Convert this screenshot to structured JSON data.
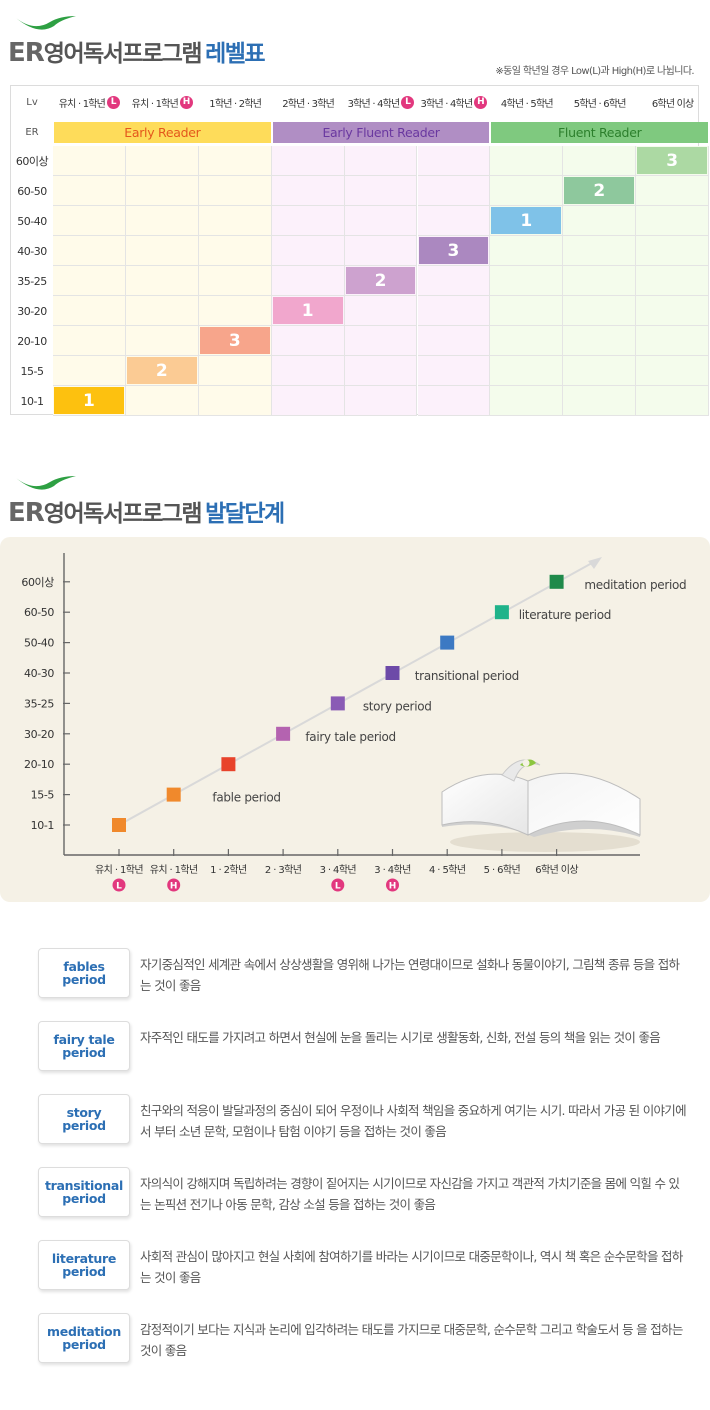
{
  "section1": {
    "title_er": "ER",
    "title_main": "영어독서프로그램",
    "title_accent": "레벨표",
    "note": "※동일 학년일 경우 Low(L)과 High(H)로 나뉩니다."
  },
  "table": {
    "lv_label": "Lv",
    "er_label": "ER",
    "columns": [
      {
        "label": "유치 · 1학년",
        "badge": "L"
      },
      {
        "label": "유치 · 1학년",
        "badge": "H"
      },
      {
        "label": "1학년 · 2학년",
        "badge": ""
      },
      {
        "label": "2학년 · 3학년",
        "badge": ""
      },
      {
        "label": "3학년 · 4학년",
        "badge": "L"
      },
      {
        "label": "3학년 · 4학년",
        "badge": "H"
      },
      {
        "label": "4학년 · 5학년",
        "badge": ""
      },
      {
        "label": "5학년 · 6학년",
        "badge": ""
      },
      {
        "label": "6학년 이상",
        "badge": ""
      }
    ],
    "groups": [
      {
        "name": "Early Reader",
        "start": 0,
        "span": 3,
        "bar_color": "#fedc5a",
        "text_color": "#e4581c",
        "cell_color": "#fffbea"
      },
      {
        "name": "Early Fluent Reader",
        "start": 3,
        "span": 3,
        "bar_color": "#b08ec4",
        "text_color": "#6a38a0",
        "cell_color": "#fcf1fb"
      },
      {
        "name": "Fluent Reader",
        "start": 6,
        "span": 3,
        "bar_color": "#7fc97f",
        "text_color": "#2c7f2c",
        "cell_color": "#f4fcec"
      }
    ],
    "rows": [
      "60이상",
      "60-50",
      "50-40",
      "40-30",
      "35-25",
      "30-20",
      "20-10",
      "15-5",
      "10-1"
    ],
    "blocks": [
      {
        "col": 0,
        "row": 8,
        "label": "1",
        "color": "#fdc10f"
      },
      {
        "col": 1,
        "row": 7,
        "label": "2",
        "color": "#fbcb94"
      },
      {
        "col": 2,
        "row": 6,
        "label": "3",
        "color": "#f7a58b"
      },
      {
        "col": 3,
        "row": 5,
        "label": "1",
        "color": "#f1a7cd"
      },
      {
        "col": 4,
        "row": 4,
        "label": "2",
        "color": "#cda2cf"
      },
      {
        "col": 5,
        "row": 3,
        "label": "3",
        "color": "#ab88c0"
      },
      {
        "col": 6,
        "row": 2,
        "label": "1",
        "color": "#7fc2e8"
      },
      {
        "col": 7,
        "row": 1,
        "label": "2",
        "color": "#8ec89d"
      },
      {
        "col": 8,
        "row": 0,
        "label": "3",
        "color": "#acd9a3"
      }
    ]
  },
  "section2": {
    "title_er": "ER",
    "title_main": "영어독서프로그램",
    "title_accent": "발달단계"
  },
  "chart_data": {
    "type": "scatter",
    "title": "",
    "xlabel": "",
    "ylabel": "",
    "x_categories": [
      {
        "label": "유치 · 1학년",
        "badge": "L"
      },
      {
        "label": "유치 · 1학년",
        "badge": "H"
      },
      {
        "label": "1 · 2학년",
        "badge": ""
      },
      {
        "label": "2 · 3학년",
        "badge": ""
      },
      {
        "label": "3 · 4학년",
        "badge": "L"
      },
      {
        "label": "3 · 4학년",
        "badge": "H"
      },
      {
        "label": "4 · 5학년",
        "badge": ""
      },
      {
        "label": "5 · 6학년",
        "badge": ""
      },
      {
        "label": "6학년 이상",
        "badge": ""
      }
    ],
    "y_categories": [
      "10-1",
      "15-5",
      "20-10",
      "30-20",
      "35-25",
      "40-30",
      "50-40",
      "60-50",
      "60이상"
    ],
    "points": [
      {
        "x": 0,
        "y": 0,
        "color": "#f0892c"
      },
      {
        "x": 1,
        "y": 1,
        "color": "#f0892c"
      },
      {
        "x": 2,
        "y": 2,
        "color": "#e8432b"
      },
      {
        "x": 3,
        "y": 3,
        "color": "#b463b0"
      },
      {
        "x": 4,
        "y": 4,
        "color": "#8a5bb5"
      },
      {
        "x": 5,
        "y": 5,
        "color": "#6d4aa8"
      },
      {
        "x": 6,
        "y": 6,
        "color": "#3c79c3"
      },
      {
        "x": 7,
        "y": 7,
        "color": "#1fb38a"
      },
      {
        "x": 8,
        "y": 8,
        "color": "#1f8a4a"
      }
    ],
    "annotations": [
      {
        "text": "fable period",
        "x": 2,
        "y": 1
      },
      {
        "text": "fairy tale period",
        "x": 3.7,
        "y": 3
      },
      {
        "text": "story period",
        "x": 4.75,
        "y": 4
      },
      {
        "text": "transitional period",
        "x": 5.7,
        "y": 5
      },
      {
        "text": "literature period",
        "x": 7.6,
        "y": 7
      },
      {
        "text": "meditation period",
        "x": 8.8,
        "y": 8
      }
    ]
  },
  "periods": [
    {
      "name": "fables period",
      "desc": "자기중심적인 세계관 속에서 상상생활을 영위해 나가는 연령대이므로 설화나 동물이야기, 그림책 종류 등을 접하는 것이 좋음"
    },
    {
      "name": "fairy tale period",
      "desc": "자주적인 태도를 가지려고 하면서 현실에 눈을 돌리는 시기로 생활동화, 신화, 전설 등의 책을 읽는 것이 좋음"
    },
    {
      "name": "story period",
      "desc": "친구와의 적응이 발달과정의 중심이 되어 우정이나 사회적 책임을 중요하게 여기는 시기. 따라서 가공 된 이야기에서 부터 소년 문학, 모험이나 탐험 이야기 등을 접하는 것이 좋음"
    },
    {
      "name": "transitional period",
      "desc": "자의식이 강해지며 독립하려는 경향이 짙어지는 시기이므로 자신감을 가지고 객관적 가치기준을 몸에 익힐 수 있는 논픽션 전기나 아동 문학, 감상 소설 등을 접하는 것이 좋음"
    },
    {
      "name": "literature period",
      "desc": "사회적 관심이 많아지고 현실 사회에 참여하기를 바라는 시기이므로 대중문학이나, 역시 책 혹은 순수문학을 접하는 것이 좋음"
    },
    {
      "name": "meditation period",
      "desc": "감정적이기 보다는 지식과 논리에 입각하려는 태도를 가지므로 대중문학, 순수문학 그리고 학술도서 등 을 접하는 것이 좋음"
    }
  ]
}
